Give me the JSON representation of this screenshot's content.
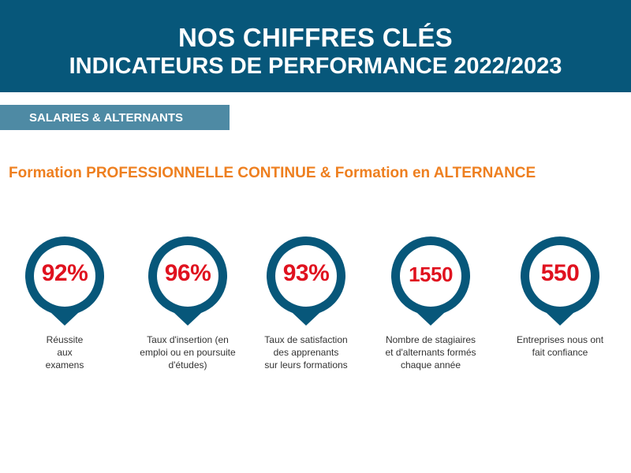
{
  "header": {
    "line1": "NOS CHIFFRES CLÉS",
    "line2": "INDICATEURS DE PERFORMANCE 2022/2023"
  },
  "section_tag": "SALARIES & ALTERNANTS",
  "subtitle": "Formation PROFESSIONNELLE CONTINUE & Formation en ALTERNANCE",
  "colors": {
    "banner": "#07577a",
    "tag": "#4e8aa4",
    "subtitle": "#ee7f1f",
    "value": "#e0121f",
    "pin": "#07577a"
  },
  "stats": [
    {
      "value": "92%",
      "caption": [
        "Réussite",
        "aux",
        "examens"
      ]
    },
    {
      "value": "96%",
      "caption": [
        "Taux d'insertion (en",
        "emploi ou en poursuite",
        "d'études)"
      ]
    },
    {
      "value": "93%",
      "caption": [
        "Taux de satisfaction",
        "des apprenants",
        "sur leurs formations"
      ]
    },
    {
      "value": "1550",
      "caption": [
        "Nombre de stagiaires",
        "et d'alternants formés",
        "chaque année"
      ]
    },
    {
      "value": "550",
      "caption": [
        "Entreprises nous ont",
        "fait confiance"
      ]
    }
  ]
}
